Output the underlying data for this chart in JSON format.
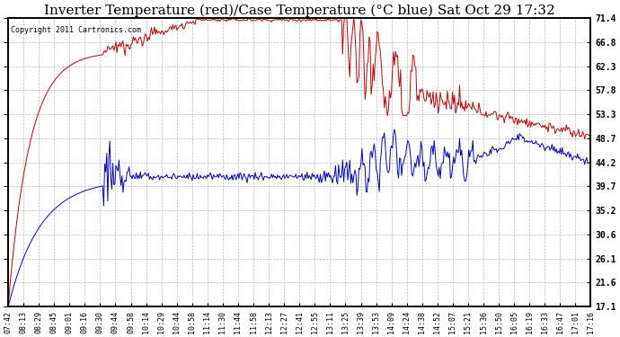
{
  "title": "Inverter Temperature (red)/Case Temperature (°C blue) Sat Oct 29 17:32",
  "copyright": "Copyright 2011 Cartronics.com",
  "ylabel_right": [
    "71.4",
    "66.8",
    "62.3",
    "57.8",
    "53.3",
    "48.7",
    "44.2",
    "39.7",
    "35.2",
    "30.6",
    "26.1",
    "21.6",
    "17.1"
  ],
  "yticks": [
    71.4,
    66.8,
    62.3,
    57.8,
    53.3,
    48.7,
    44.2,
    39.7,
    35.2,
    30.6,
    26.1,
    21.6,
    17.1
  ],
  "ylim": [
    17.1,
    71.4
  ],
  "xtick_labels": [
    "07:42",
    "08:13",
    "08:29",
    "08:45",
    "09:01",
    "09:16",
    "09:30",
    "09:44",
    "09:58",
    "10:14",
    "10:29",
    "10:44",
    "10:58",
    "11:14",
    "11:30",
    "11:44",
    "11:58",
    "12:13",
    "12:27",
    "12:41",
    "12:55",
    "13:11",
    "13:25",
    "13:39",
    "13:53",
    "14:09",
    "14:24",
    "14:38",
    "14:52",
    "15:07",
    "15:21",
    "15:36",
    "15:50",
    "16:05",
    "16:19",
    "16:33",
    "16:47",
    "17:01",
    "17:16"
  ],
  "background_color": "#ffffff",
  "grid_color": "#aaaaaa",
  "title_fontsize": 11,
  "red_color": "#cc0000",
  "blue_color": "#0000cc",
  "linewidth": 0.7,
  "n_points": 574
}
